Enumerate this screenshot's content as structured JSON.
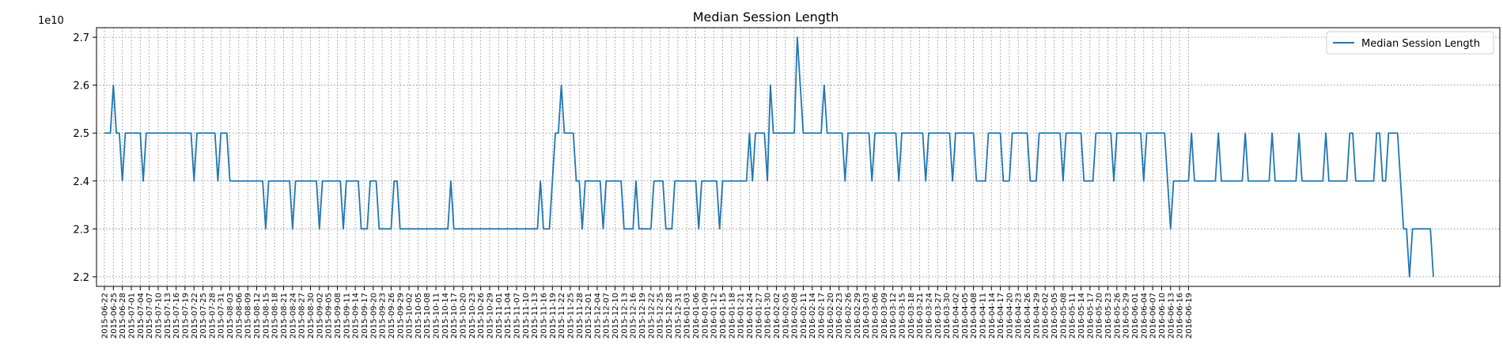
{
  "chart_data": {
    "type": "line",
    "title": "Median Session Length",
    "xlabel": "",
    "ylabel": "",
    "y_offset_label": "1e10",
    "y_scale": 10000000000,
    "ylim": [
      2.18,
      2.72
    ],
    "yticks": [
      2.2,
      2.3,
      2.4,
      2.5,
      2.6,
      2.7
    ],
    "ytick_labels": [
      "2.2",
      "2.3",
      "2.4",
      "2.5",
      "2.6",
      "2.7"
    ],
    "grid": true,
    "legend_position": "top-right",
    "x_start": "2015-06-22",
    "x_end": "2016-06-19",
    "x_tick_labels": [
      "2015-06-22",
      "2015-06-25",
      "2015-06-28",
      "2015-07-01",
      "2015-07-04",
      "2015-07-07",
      "2015-07-10",
      "2015-07-13",
      "2015-07-16",
      "2015-07-19",
      "2015-07-22",
      "2015-07-25",
      "2015-07-28",
      "2015-07-31",
      "2015-08-03",
      "2015-08-06",
      "2015-08-09",
      "2015-08-12",
      "2015-08-15",
      "2015-08-18",
      "2015-08-21",
      "2015-08-24",
      "2015-08-27",
      "2015-08-30",
      "2015-09-02",
      "2015-09-05",
      "2015-09-08",
      "2015-09-11",
      "2015-09-14",
      "2015-09-17",
      "2015-09-20",
      "2015-09-23",
      "2015-09-26",
      "2015-09-29",
      "2015-10-02",
      "2015-10-05",
      "2015-10-08",
      "2015-10-11",
      "2015-10-14",
      "2015-10-17",
      "2015-10-20",
      "2015-10-23",
      "2015-10-26",
      "2015-10-29",
      "2015-11-01",
      "2015-11-04",
      "2015-11-07",
      "2015-11-10",
      "2015-11-13",
      "2015-11-16",
      "2015-11-19",
      "2015-11-22",
      "2015-11-25",
      "2015-11-28",
      "2015-12-01",
      "2015-12-04",
      "2015-12-07",
      "2015-12-10",
      "2015-12-13",
      "2015-12-16",
      "2015-12-19",
      "2015-12-22",
      "2015-12-25",
      "2015-12-28",
      "2015-12-31",
      "2016-01-03",
      "2016-01-06",
      "2016-01-09",
      "2016-01-12",
      "2016-01-15",
      "2016-01-18",
      "2016-01-21",
      "2016-01-24",
      "2016-01-27",
      "2016-01-30",
      "2016-02-02",
      "2016-02-05",
      "2016-02-08",
      "2016-02-11",
      "2016-02-14",
      "2016-02-17",
      "2016-02-20",
      "2016-02-23",
      "2016-02-26",
      "2016-02-29",
      "2016-03-03",
      "2016-03-06",
      "2016-03-09",
      "2016-03-12",
      "2016-03-15",
      "2016-03-18",
      "2016-03-21",
      "2016-03-24",
      "2016-03-27",
      "2016-03-30",
      "2016-04-02",
      "2016-04-05",
      "2016-04-08",
      "2016-04-11",
      "2016-04-14",
      "2016-04-17",
      "2016-04-20",
      "2016-04-23",
      "2016-04-26",
      "2016-04-29",
      "2016-05-02",
      "2016-05-05",
      "2016-05-08",
      "2016-05-11",
      "2016-05-14",
      "2016-05-17",
      "2016-05-20",
      "2016-05-23",
      "2016-05-26",
      "2016-05-29",
      "2016-06-01",
      "2016-06-04",
      "2016-06-07",
      "2016-06-10",
      "2016-06-13",
      "2016-06-16",
      "2016-06-19"
    ],
    "series": [
      {
        "name": "Median Session Length",
        "color": "#1f77b4",
        "values": [
          2.5,
          2.5,
          2.5,
          2.6,
          2.5,
          2.5,
          2.4,
          2.5,
          2.5,
          2.5,
          2.5,
          2.5,
          2.5,
          2.4,
          2.5,
          2.5,
          2.5,
          2.5,
          2.5,
          2.5,
          2.5,
          2.5,
          2.5,
          2.5,
          2.5,
          2.5,
          2.5,
          2.5,
          2.5,
          2.5,
          2.4,
          2.5,
          2.5,
          2.5,
          2.5,
          2.5,
          2.5,
          2.5,
          2.4,
          2.5,
          2.5,
          2.5,
          2.4,
          2.4,
          2.4,
          2.4,
          2.4,
          2.4,
          2.4,
          2.4,
          2.4,
          2.4,
          2.4,
          2.4,
          2.3,
          2.4,
          2.4,
          2.4,
          2.4,
          2.4,
          2.4,
          2.4,
          2.4,
          2.3,
          2.4,
          2.4,
          2.4,
          2.4,
          2.4,
          2.4,
          2.4,
          2.4,
          2.3,
          2.4,
          2.4,
          2.4,
          2.4,
          2.4,
          2.4,
          2.4,
          2.3,
          2.4,
          2.4,
          2.4,
          2.4,
          2.4,
          2.3,
          2.3,
          2.3,
          2.4,
          2.4,
          2.4,
          2.3,
          2.3,
          2.3,
          2.3,
          2.3,
          2.4,
          2.4,
          2.3,
          2.3,
          2.3,
          2.3,
          2.3,
          2.3,
          2.3,
          2.3,
          2.3,
          2.3,
          2.3,
          2.3,
          2.3,
          2.3,
          2.3,
          2.3,
          2.3,
          2.4,
          2.3,
          2.3,
          2.3,
          2.3,
          2.3,
          2.3,
          2.3,
          2.3,
          2.3,
          2.3,
          2.3,
          2.3,
          2.3,
          2.3,
          2.3,
          2.3,
          2.3,
          2.3,
          2.3,
          2.3,
          2.3,
          2.3,
          2.3,
          2.3,
          2.3,
          2.3,
          2.3,
          2.3,
          2.3,
          2.4,
          2.3,
          2.3,
          2.3,
          2.4,
          2.5,
          2.5,
          2.6,
          2.5,
          2.5,
          2.5,
          2.5,
          2.4,
          2.4,
          2.3,
          2.4,
          2.4,
          2.4,
          2.4,
          2.4,
          2.4,
          2.3,
          2.4,
          2.4,
          2.4,
          2.4,
          2.4,
          2.4,
          2.3,
          2.3,
          2.3,
          2.3,
          2.4,
          2.3,
          2.3,
          2.3,
          2.3,
          2.3,
          2.4,
          2.4,
          2.4,
          2.4,
          2.3,
          2.3,
          2.3,
          2.4,
          2.4,
          2.4,
          2.4,
          2.4,
          2.4,
          2.4,
          2.4,
          2.3,
          2.4,
          2.4,
          2.4,
          2.4,
          2.4,
          2.4,
          2.3,
          2.4,
          2.4,
          2.4,
          2.4,
          2.4,
          2.4,
          2.4,
          2.4,
          2.4,
          2.5,
          2.4,
          2.5,
          2.5,
          2.5,
          2.5,
          2.4,
          2.6,
          2.5,
          2.5,
          2.5,
          2.5,
          2.5,
          2.5,
          2.5,
          2.5,
          2.7,
          2.6,
          2.5,
          2.5,
          2.5,
          2.5,
          2.5,
          2.5,
          2.5,
          2.6,
          2.5,
          2.5,
          2.5,
          2.5,
          2.5,
          2.5,
          2.4,
          2.5,
          2.5,
          2.5,
          2.5,
          2.5,
          2.5,
          2.5,
          2.5,
          2.4,
          2.5,
          2.5,
          2.5,
          2.5,
          2.5,
          2.5,
          2.5,
          2.5,
          2.4,
          2.5,
          2.5,
          2.5,
          2.5,
          2.5,
          2.5,
          2.5,
          2.5,
          2.4,
          2.5,
          2.5,
          2.5,
          2.5,
          2.5,
          2.5,
          2.5,
          2.5,
          2.4,
          2.5,
          2.5,
          2.5,
          2.5,
          2.5,
          2.5,
          2.5,
          2.4,
          2.4,
          2.4,
          2.4,
          2.5,
          2.5,
          2.5,
          2.5,
          2.5,
          2.4,
          2.4,
          2.4,
          2.5,
          2.5,
          2.5,
          2.5,
          2.5,
          2.5,
          2.4,
          2.4,
          2.4,
          2.5,
          2.5,
          2.5,
          2.5,
          2.5,
          2.5,
          2.5,
          2.5,
          2.4,
          2.5,
          2.5,
          2.5,
          2.5,
          2.5,
          2.5,
          2.4,
          2.4,
          2.4,
          2.4,
          2.5,
          2.5,
          2.5,
          2.5,
          2.5,
          2.5,
          2.4,
          2.5,
          2.5,
          2.5,
          2.5,
          2.5,
          2.5,
          2.5,
          2.5,
          2.5,
          2.4,
          2.5,
          2.5,
          2.5,
          2.5,
          2.5,
          2.5,
          2.5,
          2.4,
          2.3,
          2.4,
          2.4,
          2.4,
          2.4,
          2.4,
          2.4,
          2.5,
          2.4,
          2.4,
          2.4,
          2.4,
          2.4,
          2.4,
          2.4,
          2.4,
          2.5,
          2.4,
          2.4,
          2.4,
          2.4,
          2.4,
          2.4,
          2.4,
          2.4,
          2.5,
          2.4,
          2.4,
          2.4,
          2.4,
          2.4,
          2.4,
          2.4,
          2.4,
          2.5,
          2.4,
          2.4,
          2.4,
          2.4,
          2.4,
          2.4,
          2.4,
          2.4,
          2.5,
          2.4,
          2.4,
          2.4,
          2.4,
          2.4,
          2.4,
          2.4,
          2.4,
          2.5,
          2.4,
          2.4,
          2.4,
          2.4,
          2.4,
          2.4,
          2.4,
          2.5,
          2.5,
          2.4,
          2.4,
          2.4,
          2.4,
          2.4,
          2.4,
          2.4,
          2.5,
          2.5,
          2.4,
          2.4,
          2.5,
          2.5,
          2.5,
          2.5,
          2.4,
          2.3,
          2.3,
          2.2,
          2.3,
          2.3,
          2.3,
          2.3,
          2.3,
          2.3,
          2.3,
          2.2
        ]
      }
    ]
  }
}
